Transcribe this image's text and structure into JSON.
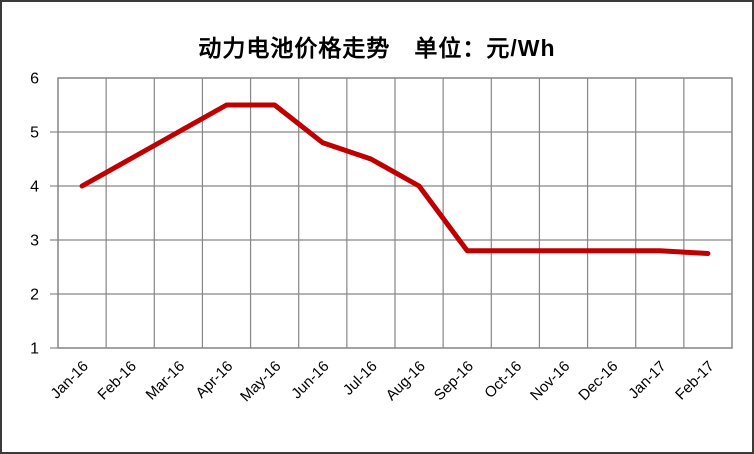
{
  "chart_data": {
    "type": "line",
    "title": "动力电池价格走势　单位：元/Wh",
    "title_main": "动力电池价格走势",
    "unit_label": "单位：元/Wh",
    "categories": [
      "Jan-16",
      "Feb-16",
      "Mar-16",
      "Apr-16",
      "May-16",
      "Jun-16",
      "Jul-16",
      "Aug-16",
      "Sep-16",
      "Oct-16",
      "Nov-16",
      "Dec-16",
      "Jan-17",
      "Feb-17"
    ],
    "series": [
      {
        "name": "动力电池价格 (元/Wh)",
        "values": [
          4.0,
          4.5,
          5.0,
          5.5,
          5.5,
          4.8,
          4.5,
          4.0,
          2.8,
          2.8,
          2.8,
          2.8,
          2.8,
          2.75
        ]
      }
    ],
    "xlabel": "",
    "ylabel": "",
    "ylim": [
      1,
      6
    ],
    "y_ticks": [
      1,
      2,
      3,
      4,
      5,
      6
    ],
    "grid": true,
    "legend_position": "none",
    "x_label_rotation_deg": -45
  },
  "style": {
    "line_color": "#C00000",
    "grid_color": "#878787",
    "text_color": "#000000",
    "frame_border_color": "#3a3a3a",
    "background_color": "#ffffff"
  }
}
